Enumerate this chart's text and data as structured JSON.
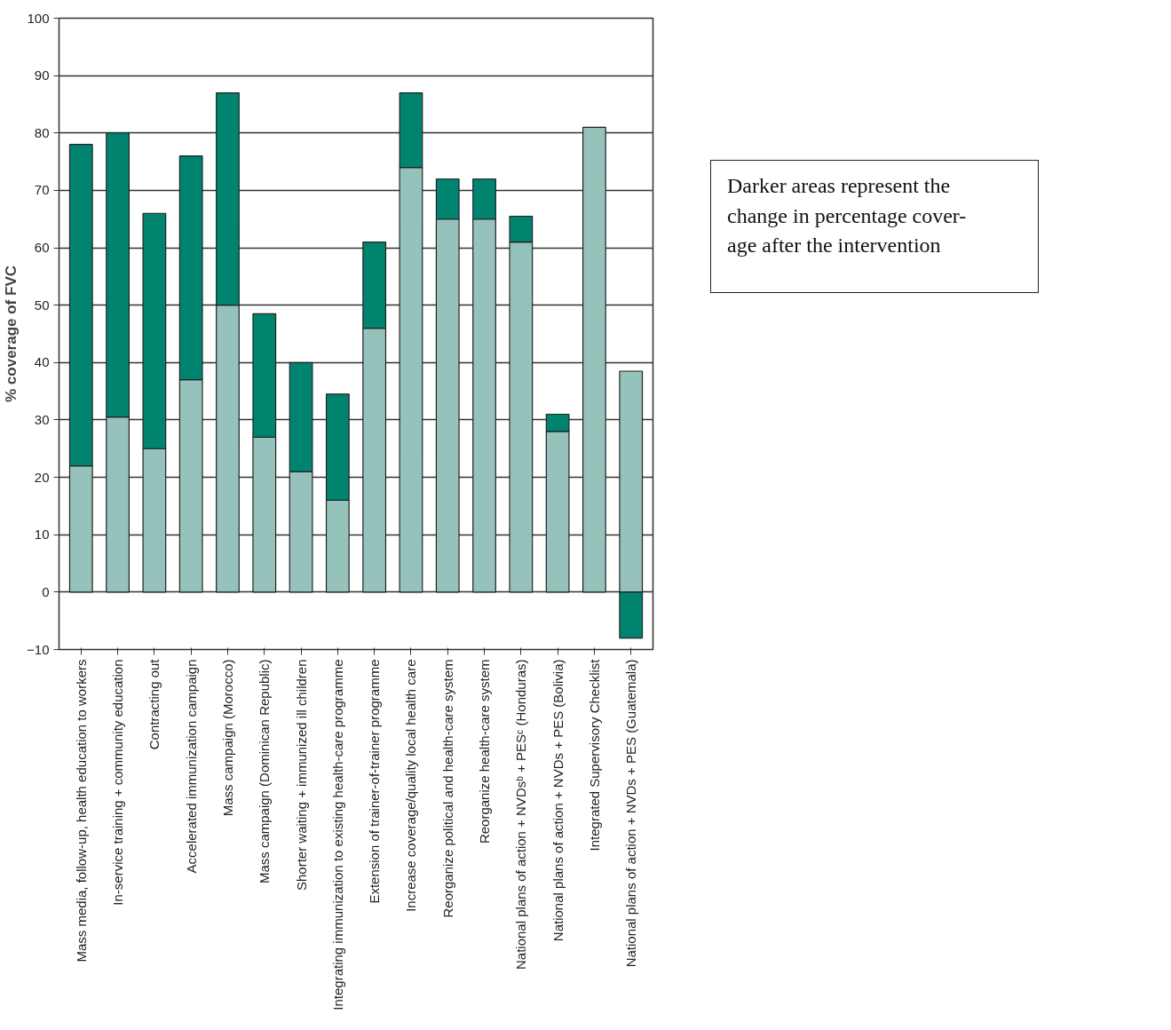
{
  "chart_data": {
    "type": "bar",
    "stacked": true,
    "ylabel": "% coverage of FVC",
    "categories": [
      "Mass media, follow-up, health education to workers",
      "In-service training + community education",
      "Contracting out",
      "Accelerated immunization campaign",
      "Mass campaign (Morocco)",
      "Mass campaign (Dominican Republic)",
      "Shorter waiting + immunized ill children",
      "Integrating immunization to existing health-care programme",
      "Extension of trainer-of-trainer programme",
      "Increase coverage/quality local health care",
      "Reorganize political and health-care system",
      "Reorganize health-care system",
      "National plans of action + NVDsᵇ + PESᶜ (Honduras)",
      "National plans of action + NVDs + PES (Bolivia)",
      "Integrated Supervisory Checklist",
      "National plans of action + NVDs + PES (Guatemala)"
    ],
    "series": [
      {
        "color": "#95c3bb",
        "values": [
          22,
          30.5,
          25,
          37,
          50,
          27,
          21,
          16,
          46,
          74,
          65,
          65,
          61,
          28,
          81,
          38.5
        ]
      },
      {
        "color": "#008470",
        "values": [
          56,
          49.5,
          41,
          39,
          37,
          21.5,
          19,
          18.5,
          15,
          13,
          7,
          7,
          4.5,
          3,
          0,
          -8
        ]
      }
    ],
    "ylim": [
      -10,
      100
    ],
    "yticks": [
      -10,
      0,
      10,
      20,
      30,
      40,
      50,
      60,
      70,
      80,
      90,
      100
    ],
    "grid": "y",
    "annotations": [
      "Darker areas represent the\nchange in percentage cover-\nage after the intervention"
    ]
  }
}
